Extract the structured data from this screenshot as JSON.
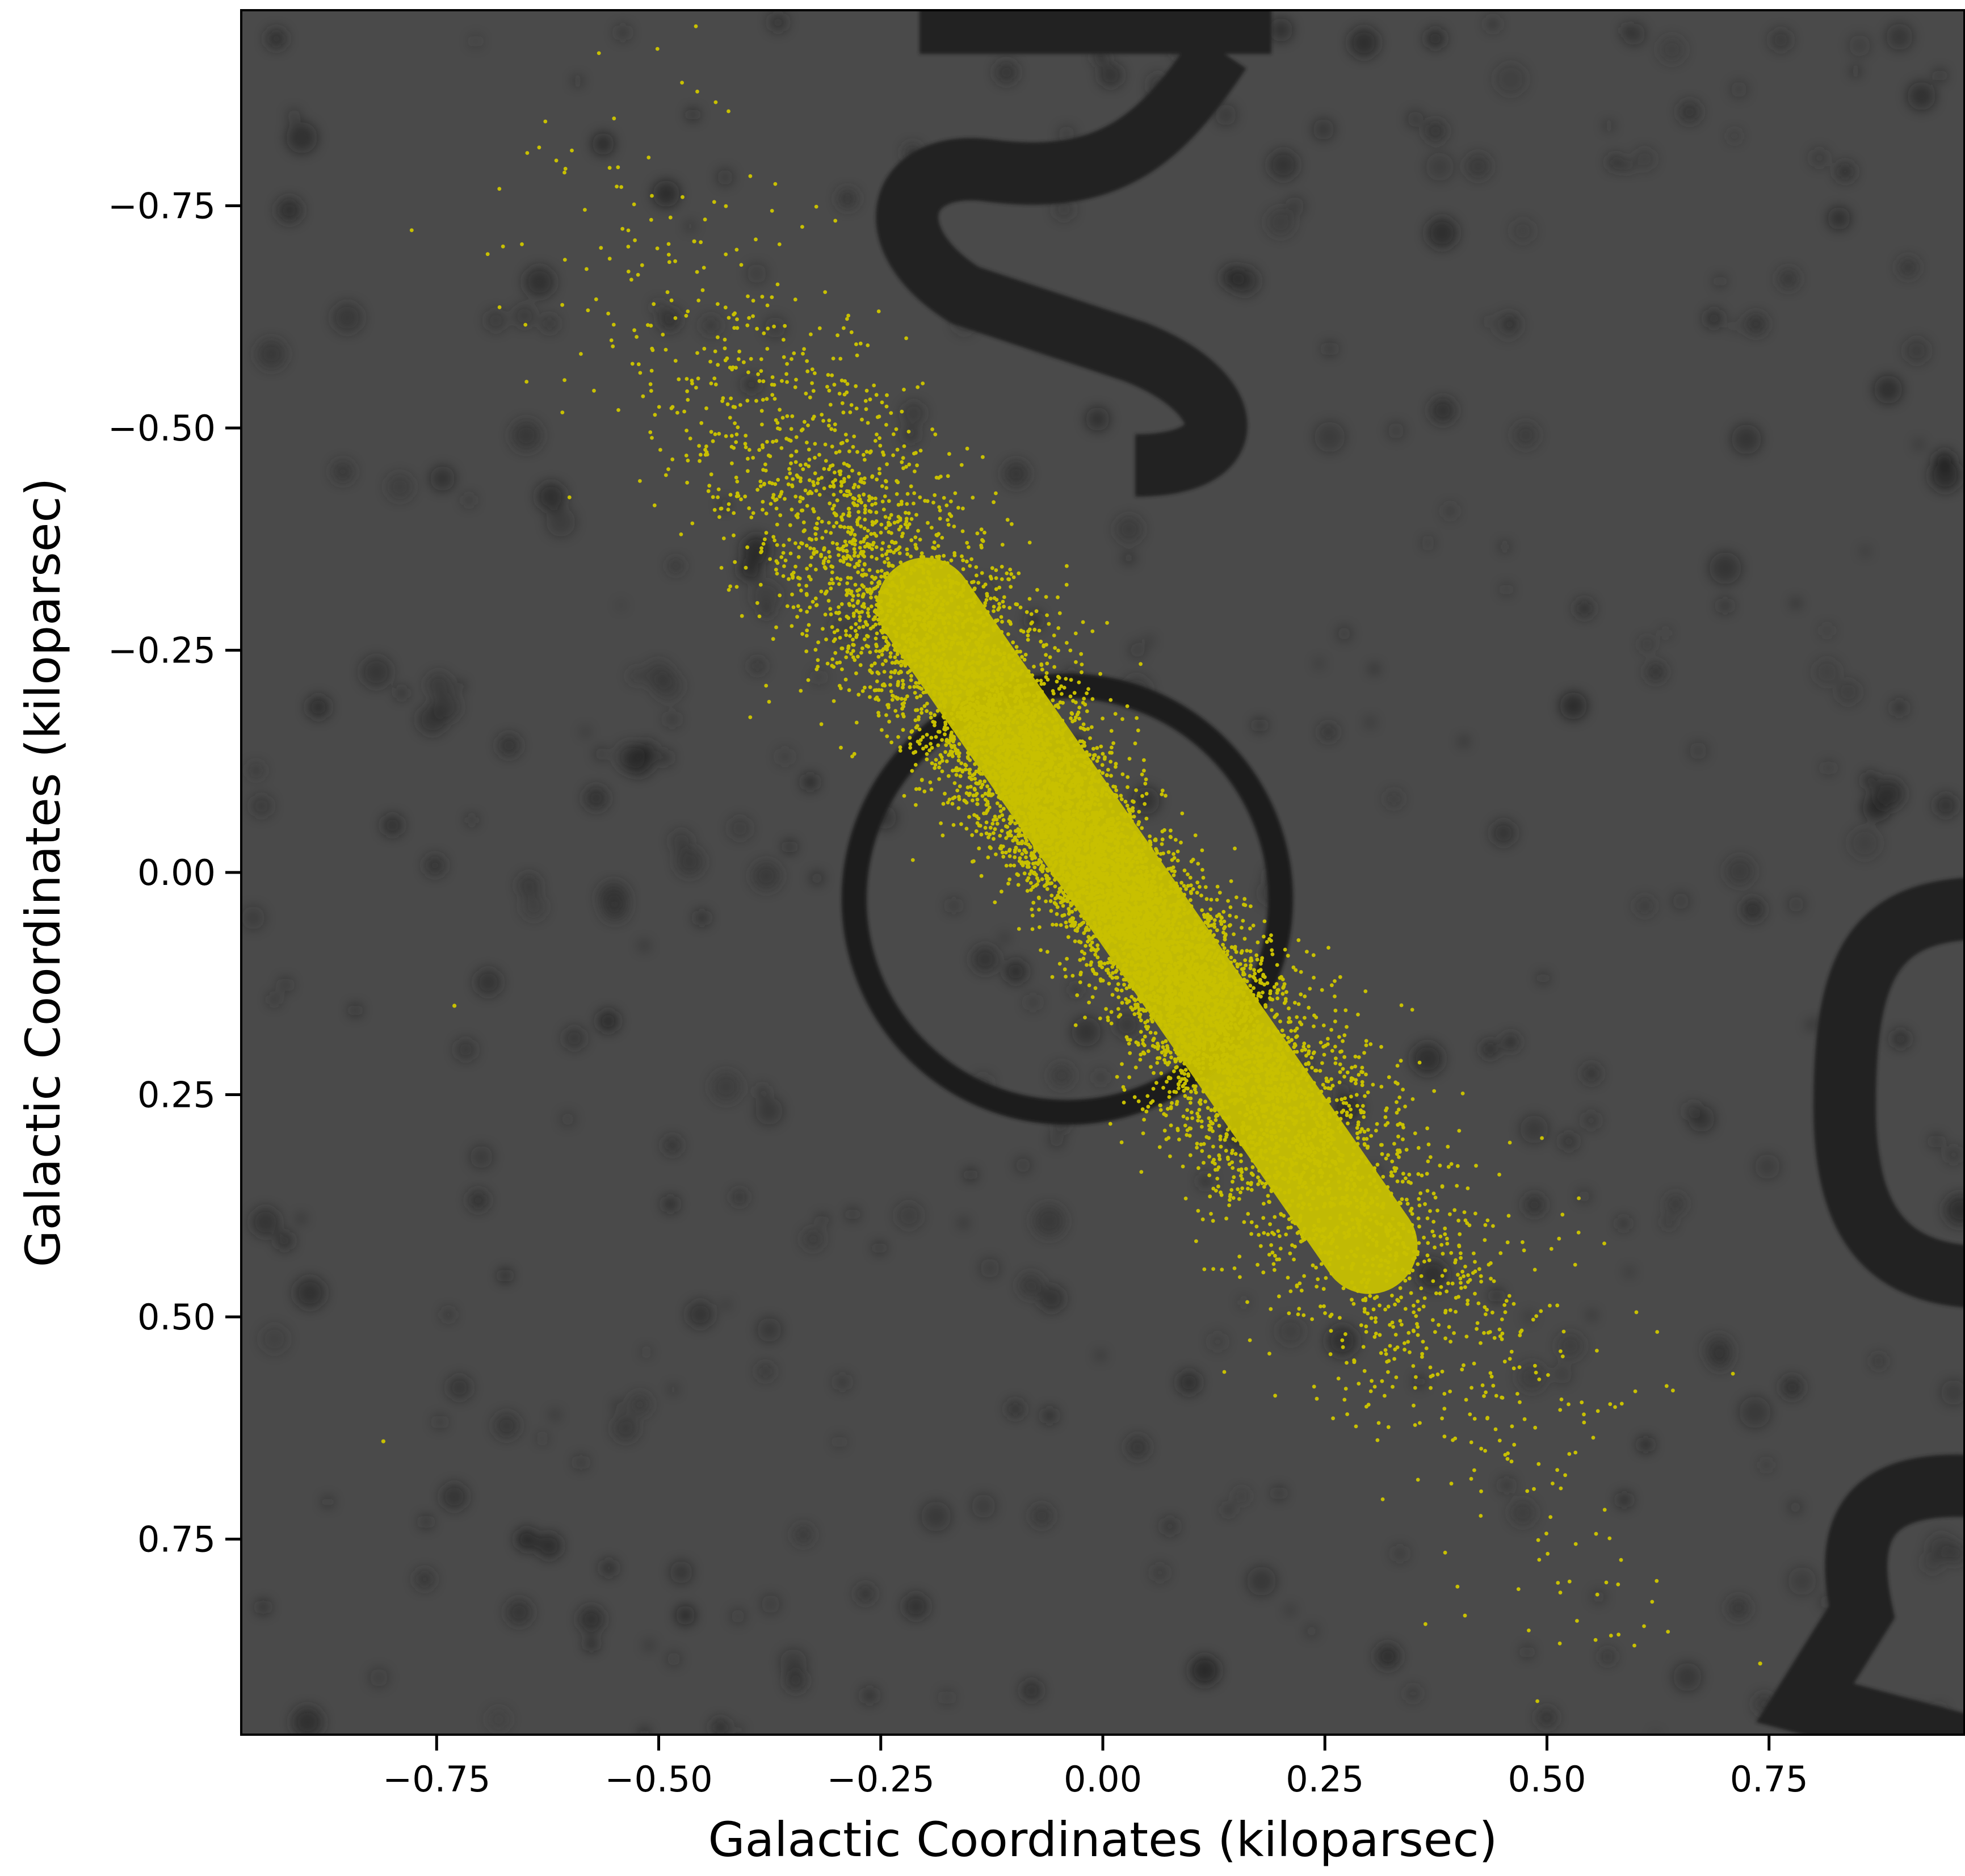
{
  "chart_data": {
    "type": "scatter",
    "title": "",
    "xlabel": "Galactic Coordinates (kiloparsec)",
    "ylabel": "Galactic Coordinates (kiloparsec)",
    "xlim": [
      -0.97,
      0.97
    ],
    "ylim": [
      0.97,
      -0.97
    ],
    "y_axis_inverted": true,
    "xticks": [
      -0.75,
      -0.5,
      -0.25,
      0.0,
      0.25,
      0.5,
      0.75
    ],
    "xtick_labels": [
      "−0.75",
      "−0.50",
      "−0.25",
      "0.00",
      "0.25",
      "0.50",
      "0.75"
    ],
    "yticks": [
      -0.75,
      -0.5,
      -0.25,
      0.0,
      0.25,
      0.5,
      0.75
    ],
    "ytick_labels": [
      "−0.75",
      "−0.50",
      "−0.25",
      "0.00",
      "0.25",
      "0.50",
      "0.75"
    ],
    "grid": false,
    "legend": "none",
    "background": "grayscale sky image with dark circular marker and partial dark lettering",
    "series": [
      {
        "marker_color": "#c8c000",
        "distribution": {
          "shape": "elongated linear cloud",
          "direction_from": [
            -0.45,
            -0.65
          ],
          "direction_to": [
            0.6,
            0.78
          ],
          "center": [
            0.0,
            0.0
          ],
          "half_length_kpc": 0.85,
          "half_width_kpc": 0.06,
          "approx_points": 60000
        },
        "outliers": [
          {
            "x": -0.46,
            "y": -0.71
          },
          {
            "x": -0.73,
            "y": 0.15
          },
          {
            "x": -0.81,
            "y": 0.64
          },
          {
            "x": 0.74,
            "y": 0.89
          }
        ]
      }
    ],
    "overlay_marker": {
      "type": "circle",
      "center": [
        -0.04,
        0.03
      ],
      "radius": 0.24,
      "color": "#1c1c1c"
    }
  }
}
